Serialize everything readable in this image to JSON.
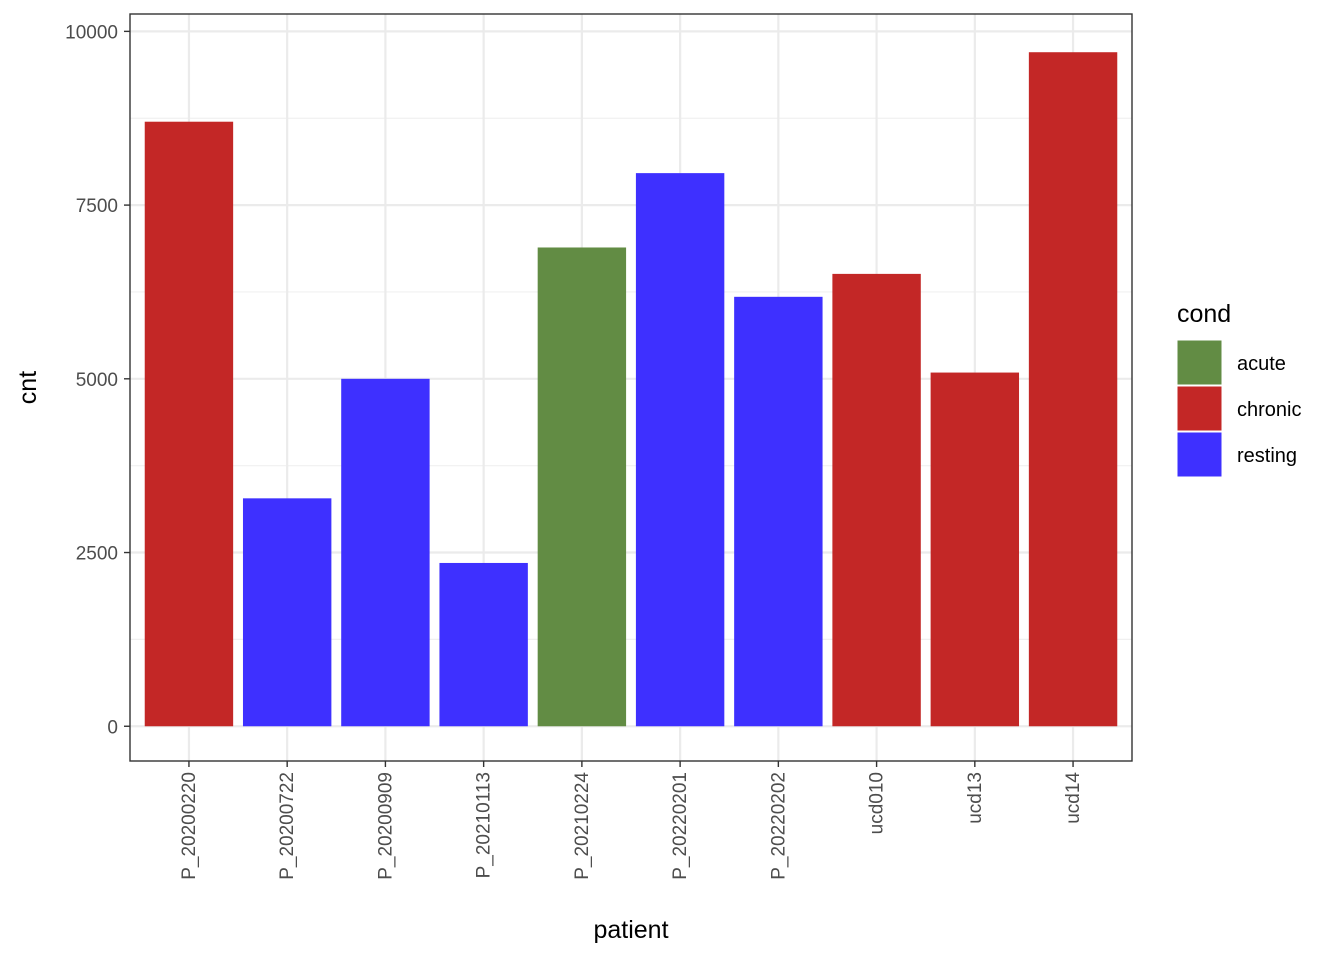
{
  "chart_data": {
    "type": "bar",
    "xlabel": "patient",
    "ylabel": "cnt",
    "categories": [
      "P_20200220",
      "P_20200722",
      "P_20200909",
      "P_20210113",
      "P_20210224",
      "P_20220201",
      "P_20220202",
      "ucd010",
      "ucd13",
      "ucd14"
    ],
    "values": [
      8700,
      3280,
      5000,
      2350,
      6890,
      7960,
      6180,
      6510,
      5090,
      9700
    ],
    "cond": [
      "chronic",
      "resting",
      "resting",
      "resting",
      "acute",
      "resting",
      "resting",
      "chronic",
      "chronic",
      "chronic"
    ],
    "ylim": [
      -500,
      10250
    ],
    "yticks": [
      0,
      2500,
      5000,
      7500,
      10000
    ],
    "ytick_labels": [
      "0",
      "2500",
      "5000",
      "7500",
      "10000"
    ],
    "grid": true,
    "legend": {
      "title": "cond",
      "position": "right",
      "entries": [
        {
          "label": "acute",
          "color": "#628c44"
        },
        {
          "label": "chronic",
          "color": "#c32726"
        },
        {
          "label": "resting",
          "color": "#3e30ff"
        }
      ]
    },
    "colors": {
      "acute": "#628c44",
      "chronic": "#c32726",
      "resting": "#3e30ff"
    }
  }
}
